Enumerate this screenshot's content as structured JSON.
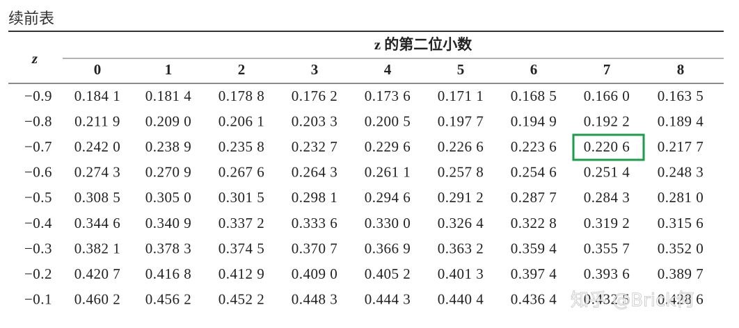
{
  "title": "续前表",
  "table": {
    "header": {
      "z": "z",
      "group": "z 的第二位小数"
    },
    "columns": [
      "0",
      "1",
      "2",
      "3",
      "4",
      "5",
      "6",
      "7",
      "8"
    ],
    "rows": [
      {
        "z": "−0.9",
        "values": [
          "0.184 1",
          "0.181 4",
          "0.178 8",
          "0.176 2",
          "0.173 6",
          "0.171 1",
          "0.168 5",
          "0.166 0",
          "0.163 5"
        ]
      },
      {
        "z": "−0.8",
        "values": [
          "0.211 9",
          "0.209 0",
          "0.206 1",
          "0.203 3",
          "0.200 5",
          "0.197 7",
          "0.194 9",
          "0.192 2",
          "0.189 4"
        ]
      },
      {
        "z": "−0.7",
        "values": [
          "0.242 0",
          "0.238 9",
          "0.235 8",
          "0.232 7",
          "0.229 6",
          "0.226 6",
          "0.223 6",
          "0.220 6",
          "0.217 7"
        ]
      },
      {
        "z": "−0.6",
        "values": [
          "0.274 3",
          "0.270 9",
          "0.267 6",
          "0.264 3",
          "0.261 1",
          "0.257 8",
          "0.254 6",
          "0.251 4",
          "0.248 3"
        ]
      },
      {
        "z": "−0.5",
        "values": [
          "0.308 5",
          "0.305 0",
          "0.301 5",
          "0.298 1",
          "0.294 6",
          "0.291 2",
          "0.287 7",
          "0.284 3",
          "0.281 0"
        ]
      },
      {
        "z": "−0.4",
        "values": [
          "0.344 6",
          "0.340 9",
          "0.337 2",
          "0.333 6",
          "0.330 0",
          "0.326 4",
          "0.322 8",
          "0.319 2",
          "0.315 6"
        ]
      },
      {
        "z": "−0.3",
        "values": [
          "0.382 1",
          "0.378 3",
          "0.374 5",
          "0.370 7",
          "0.366 9",
          "0.363 2",
          "0.359 4",
          "0.355 7",
          "0.352 0"
        ]
      },
      {
        "z": "−0.2",
        "values": [
          "0.420 7",
          "0.416 8",
          "0.412 9",
          "0.409 0",
          "0.405 2",
          "0.401 3",
          "0.397 4",
          "0.393 6",
          "0.389 7"
        ]
      },
      {
        "z": "−0.1",
        "values": [
          "0.460 2",
          "0.456 2",
          "0.452 2",
          "0.448 3",
          "0.444 3",
          "0.440 4",
          "0.436 4",
          "0.432 5",
          "0.428 6"
        ]
      }
    ]
  },
  "watermark": "知乎 @Brick何"
}
